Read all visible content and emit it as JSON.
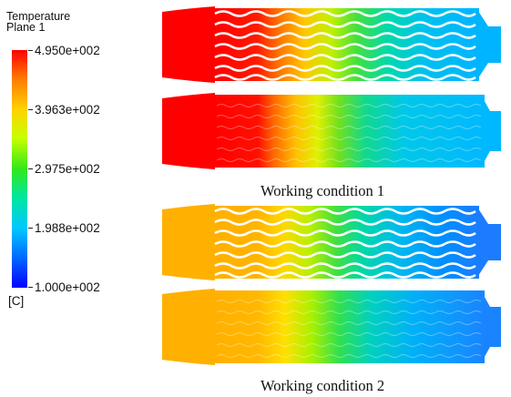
{
  "legend": {
    "title": "Temperature",
    "subtitle": "Plane 1",
    "unit": "[C]",
    "ticks": [
      "4.950e+002",
      "3.963e+002",
      "2.975e+002",
      "1.988e+002",
      "1.000e+002"
    ],
    "colors": [
      "#ff0000",
      "#ff7a00",
      "#ffd200",
      "#c8ff00",
      "#33e81a",
      "#00e6a0",
      "#00c8ff",
      "#0064ff",
      "#0000ff"
    ]
  },
  "captions": {
    "condition1": "Working condition 1",
    "condition2": "Working condition 2"
  }
}
